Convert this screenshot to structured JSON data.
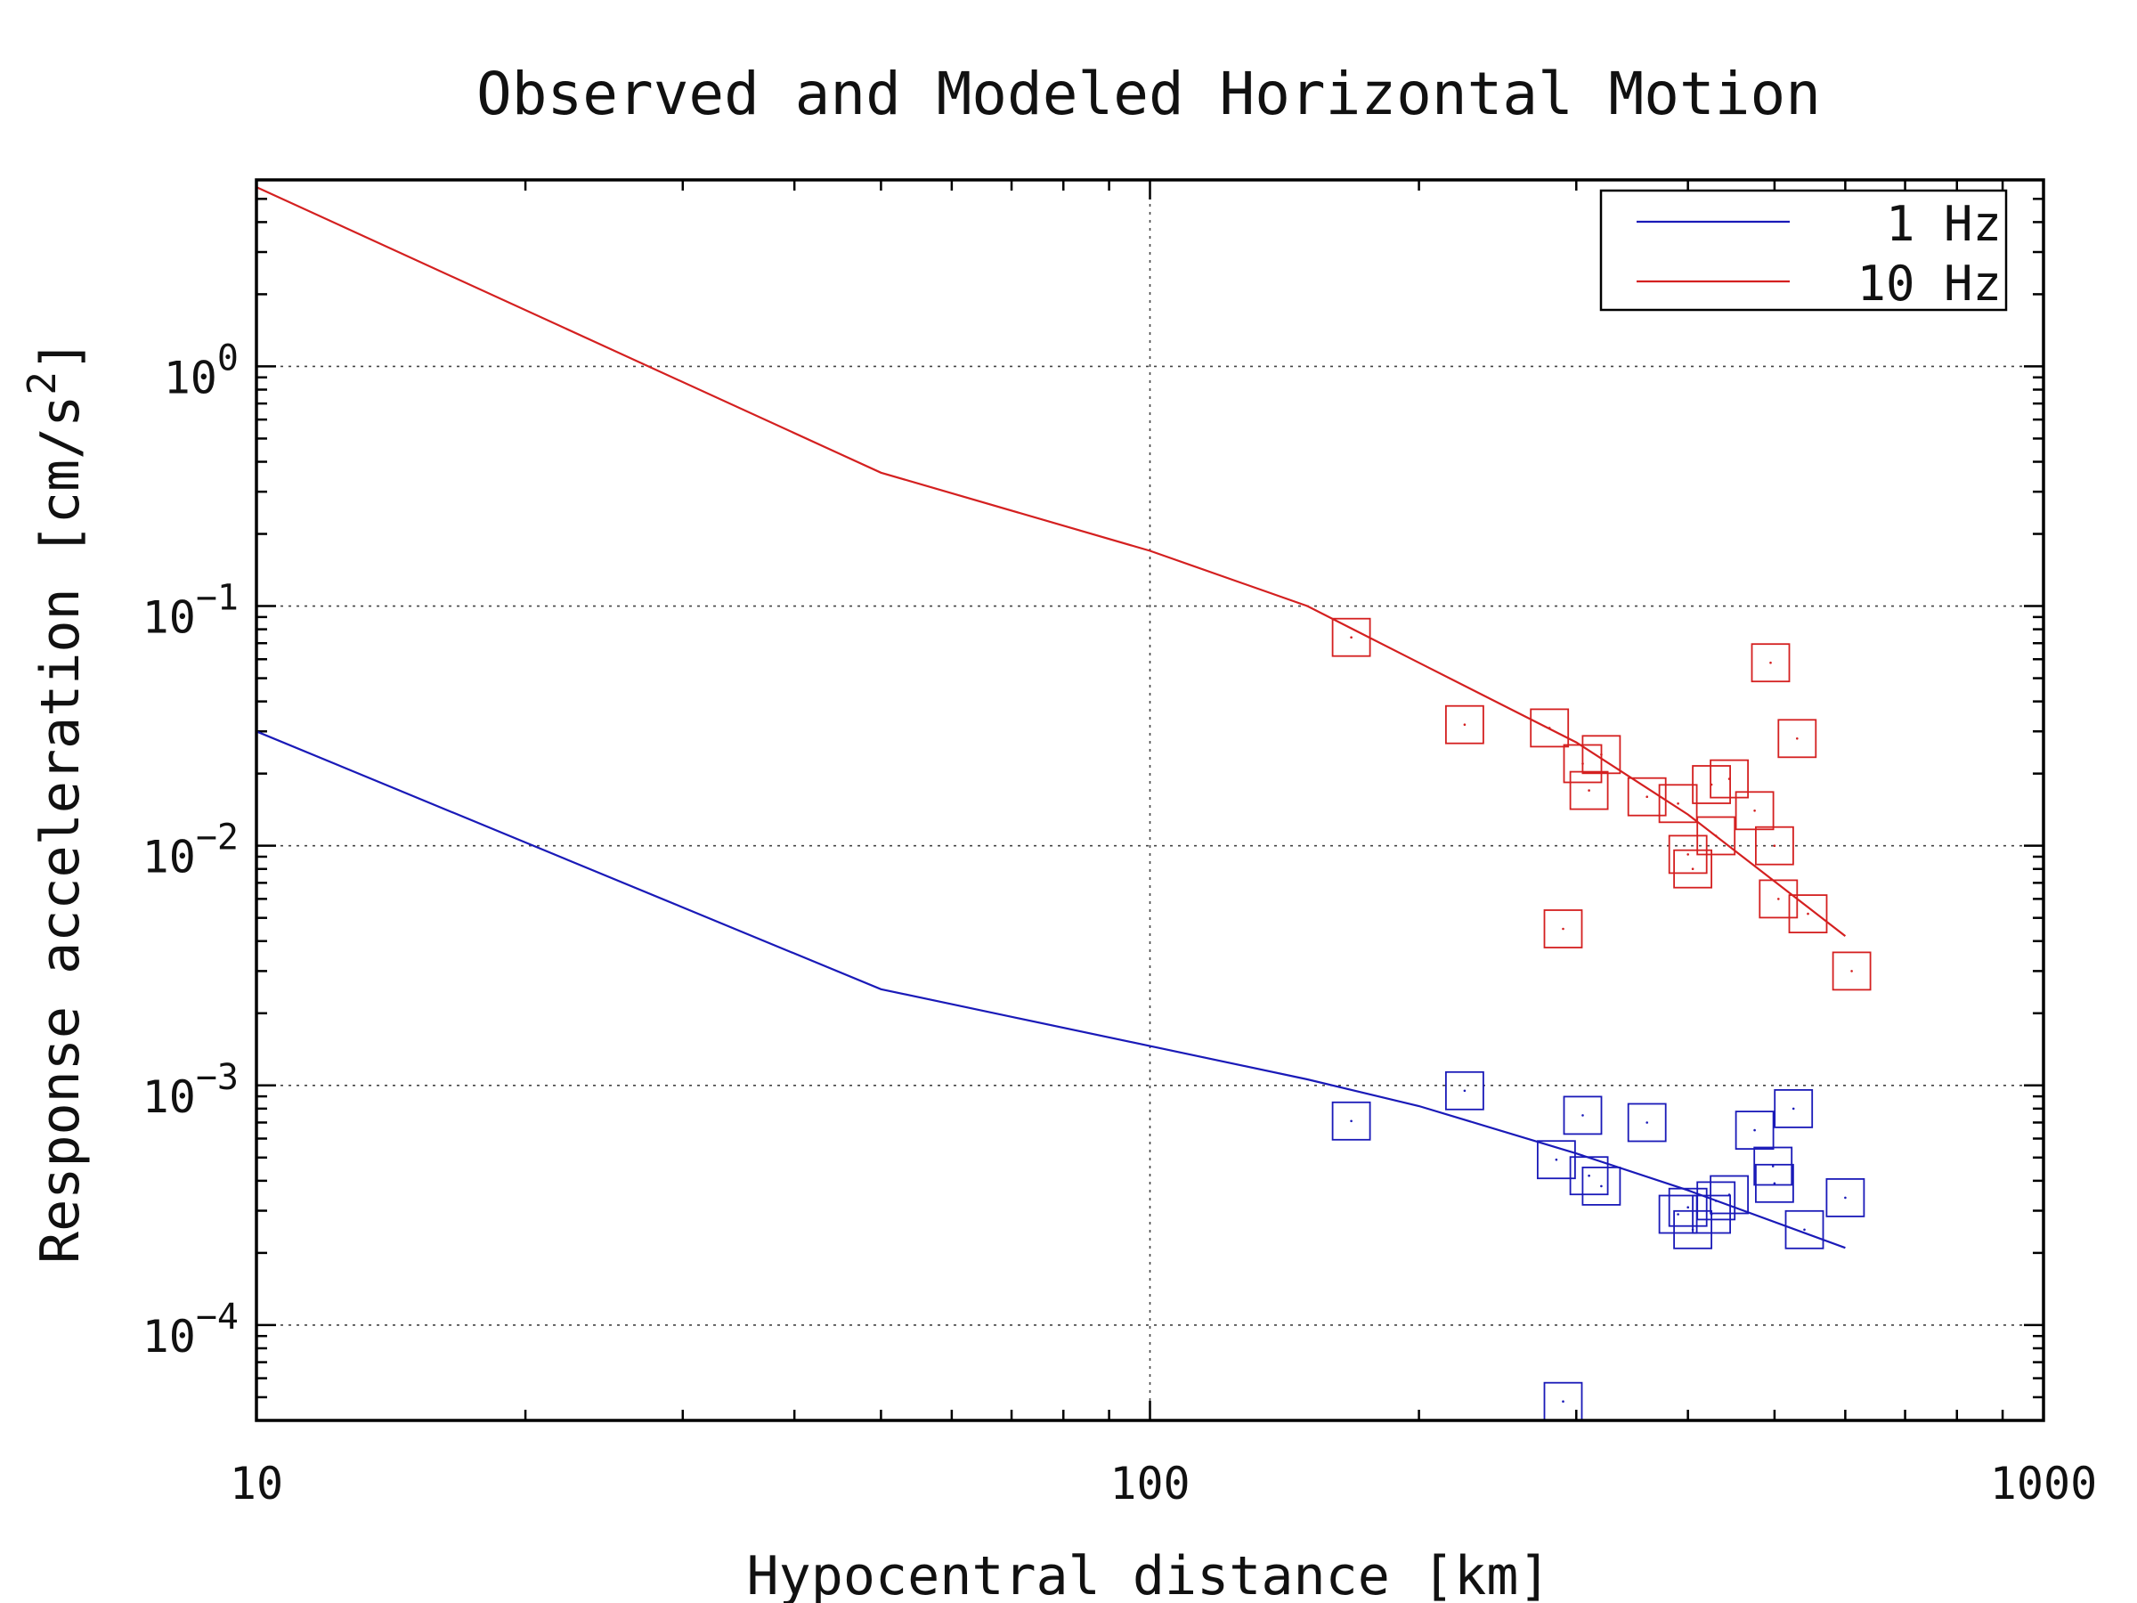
{
  "chart_data": {
    "type": "scatter",
    "title": "Observed and Modeled Horizontal Motion",
    "xlabel": "Hypocentral distance [km]",
    "ylabel_prefix": "Response acceleration [cm/s",
    "ylabel_exponent": "2",
    "ylabel_suffix": "]",
    "x_scale": "log",
    "y_scale": "log",
    "xlim": [
      10,
      1000
    ],
    "ylim": [
      4e-05,
      6
    ],
    "grid": true,
    "legend_position": "top-right",
    "x_ticks": [
      {
        "value": 10,
        "label": "10"
      },
      {
        "value": 100,
        "label": "100"
      },
      {
        "value": 1000,
        "label": "1000"
      }
    ],
    "y_ticks": [
      {
        "value": 1,
        "base": "10",
        "exp": "0"
      },
      {
        "value": 0.1,
        "base": "10",
        "exp": "−1"
      },
      {
        "value": 0.01,
        "base": "10",
        "exp": "−2"
      },
      {
        "value": 0.001,
        "base": "10",
        "exp": "−3"
      },
      {
        "value": 0.0001,
        "base": "10",
        "exp": "−4"
      }
    ],
    "model_lines": [
      {
        "name": "1 Hz",
        "color": "#1a1ab8",
        "x": [
          10,
          50,
          100,
          150,
          200,
          300,
          400,
          600
        ],
        "y": [
          0.03,
          0.00252,
          0.00146,
          0.00106,
          0.00082,
          0.00052,
          0.000365,
          0.00021
        ]
      },
      {
        "name": "10 Hz",
        "color": "#d42020",
        "x": [
          10,
          50,
          100,
          150,
          200,
          300,
          400,
          600
        ],
        "y": [
          5.6,
          0.36,
          0.17,
          0.1,
          0.058,
          0.027,
          0.0135,
          0.0042
        ]
      }
    ],
    "observed": [
      {
        "name": "1 Hz observed",
        "color": "#1a1ab8",
        "x": [
          168,
          225,
          285,
          290,
          305,
          310,
          320,
          360,
          390,
          400,
          405,
          425,
          430,
          445,
          475,
          498,
          500,
          525,
          540,
          600
        ],
        "y": [
          0.00071,
          0.00095,
          0.00049,
          4.8e-05,
          0.00075,
          0.00042,
          0.00038,
          0.0007,
          0.00029,
          0.00031,
          0.00025,
          0.00029,
          0.00033,
          0.00035,
          0.00065,
          0.00046,
          0.00039,
          0.0008,
          0.00025,
          0.00034
        ]
      },
      {
        "name": "10 Hz observed",
        "color": "#d42020",
        "x": [
          168,
          225,
          280,
          290,
          305,
          310,
          320,
          360,
          390,
          400,
          405,
          425,
          430,
          445,
          475,
          495,
          500,
          505,
          530,
          545,
          610
        ],
        "y": [
          0.074,
          0.032,
          0.031,
          0.0045,
          0.022,
          0.017,
          0.024,
          0.016,
          0.015,
          0.0092,
          0.008,
          0.018,
          0.011,
          0.019,
          0.014,
          0.058,
          0.01,
          0.006,
          0.028,
          0.0052,
          0.003
        ]
      }
    ]
  }
}
